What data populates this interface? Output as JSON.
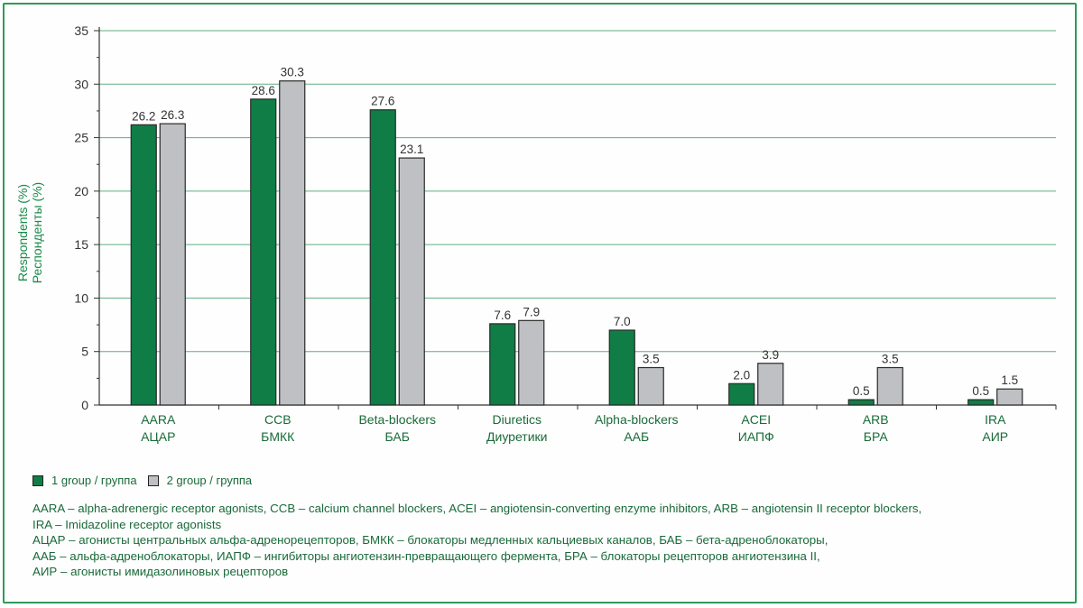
{
  "chart_data": {
    "type": "bar",
    "ylabel_lines": [
      "Respondents (%)",
      "Респонденты (%)"
    ],
    "ylim": [
      0,
      35
    ],
    "yticks": [
      0,
      5,
      10,
      15,
      20,
      25,
      30,
      35
    ],
    "grid": true,
    "legend_position": "bottom-left",
    "categories": [
      [
        "AARA",
        "АЦАР"
      ],
      [
        "CCB",
        "БМКК"
      ],
      [
        "Beta-blockers",
        "БАБ"
      ],
      [
        "Diuretics",
        "Диуретики"
      ],
      [
        "Alpha-blockers",
        "ААБ"
      ],
      [
        "ACEI",
        "ИАПФ"
      ],
      [
        "ARB",
        "БРА"
      ],
      [
        "IRA",
        "АИР"
      ]
    ],
    "series": [
      {
        "name": "1 group / группа",
        "color": "#0f7d45",
        "values": [
          26.2,
          28.6,
          27.6,
          7.6,
          7.0,
          2.0,
          0.5,
          0.5
        ]
      },
      {
        "name": "2 group / группа",
        "color": "#bfc0c4",
        "values": [
          26.3,
          30.3,
          23.1,
          7.9,
          3.5,
          3.9,
          3.5,
          1.5
        ]
      }
    ]
  },
  "colors": {
    "frame": "#2e9b5a",
    "grid": "#5fae83",
    "text_green": "#1a8a4a"
  },
  "notes": [
    "AARA – alpha-adrenergic receptor agonists, CCB – calcium channel blockers, ACEI – angiotensin-converting enzyme inhibitors, ARB – angiotensin II receptor blockers,",
    "IRA – Imidazoline receptor agonists",
    "АЦАР – агонисты центральных альфа-адренорецепторов, БМКК – блокаторы медленных кальциевых каналов, БАБ – бета-адреноблокаторы,",
    "ААБ – альфа-адреноблокаторы, ИАПФ – ингибиторы ангиотензин-превращающего фермента, БРА – блокаторы рецепторов ангиотензина II,",
    "АИР – агонисты имидазолиновых рецепторов"
  ]
}
